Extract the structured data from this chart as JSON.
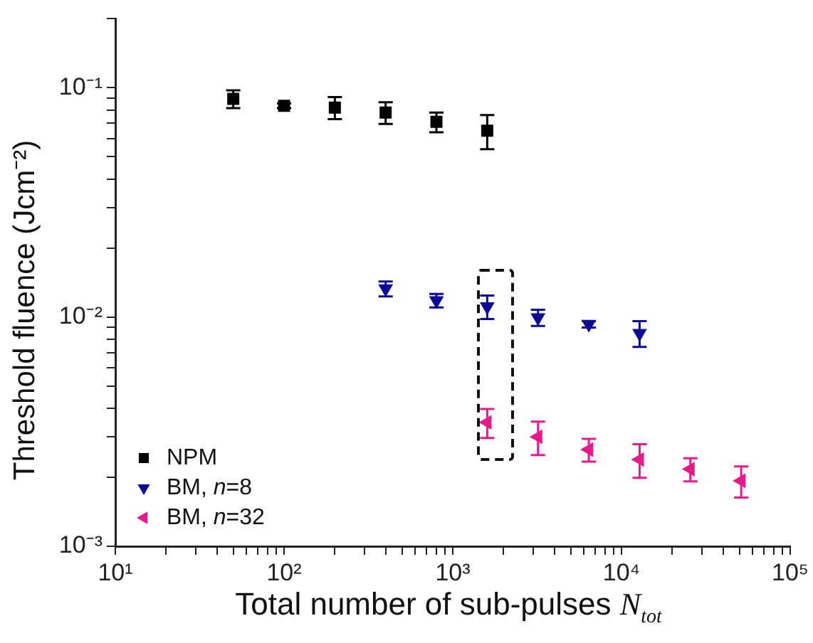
{
  "chart_data": {
    "type": "scatter",
    "xlabel": "Total number of sub-pulses N$_{tot}$",
    "ylabel": "Threshold fluence  (Jcm⁻²)",
    "log": "xy",
    "grid": false,
    "legend": "bottom left",
    "xlim": [
      10,
      100000
    ],
    "xticks": [
      {
        "value": 10,
        "label": "10¹"
      },
      {
        "value": 20,
        "label": null
      },
      {
        "value": 30,
        "label": null
      },
      {
        "value": 40,
        "label": null
      },
      {
        "value": 50,
        "label": null
      },
      {
        "value": 60,
        "label": null
      },
      {
        "value": 70,
        "label": null
      },
      {
        "value": 80,
        "label": null
      },
      {
        "value": 90,
        "label": null
      },
      {
        "value": 100,
        "label": "10²"
      },
      {
        "value": 200,
        "label": null
      },
      {
        "value": 300,
        "label": null
      },
      {
        "value": 400,
        "label": null
      },
      {
        "value": 500,
        "label": null
      },
      {
        "value": 600,
        "label": null
      },
      {
        "value": 700,
        "label": null
      },
      {
        "value": 800,
        "label": null
      },
      {
        "value": 900,
        "label": null
      },
      {
        "value": 1000,
        "label": "10³"
      },
      {
        "value": 2000,
        "label": null
      },
      {
        "value": 3000,
        "label": null
      },
      {
        "value": 4000,
        "label": null
      },
      {
        "value": 5000,
        "label": null
      },
      {
        "value": 6000,
        "label": null
      },
      {
        "value": 7000,
        "label": null
      },
      {
        "value": 8000,
        "label": null
      },
      {
        "value": 9000,
        "label": null
      },
      {
        "value": 10000,
        "label": "10⁴"
      },
      {
        "value": 20000,
        "label": null
      },
      {
        "value": 30000,
        "label": null
      },
      {
        "value": 40000,
        "label": null
      },
      {
        "value": 50000,
        "label": null
      },
      {
        "value": 60000,
        "label": null
      },
      {
        "value": 70000,
        "label": null
      },
      {
        "value": 80000,
        "label": null
      },
      {
        "value": 90000,
        "label": null
      },
      {
        "value": 100000,
        "label": "10⁵"
      }
    ],
    "ylim": [
      0.001,
      0.2
    ],
    "yticks": [
      {
        "value": 0.001,
        "label": "10⁻³"
      },
      {
        "value": 0.002,
        "label": null
      },
      {
        "value": 0.003,
        "label": null
      },
      {
        "value": 0.004,
        "label": null
      },
      {
        "value": 0.005,
        "label": null
      },
      {
        "value": 0.006,
        "label": null
      },
      {
        "value": 0.007,
        "label": null
      },
      {
        "value": 0.008,
        "label": null
      },
      {
        "value": 0.009,
        "label": null
      },
      {
        "value": 0.01,
        "label": "10⁻²"
      },
      {
        "value": 0.02,
        "label": null
      },
      {
        "value": 0.03,
        "label": null
      },
      {
        "value": 0.04,
        "label": null
      },
      {
        "value": 0.05,
        "label": null
      },
      {
        "value": 0.06,
        "label": null
      },
      {
        "value": 0.07,
        "label": null
      },
      {
        "value": 0.08,
        "label": null
      },
      {
        "value": 0.09,
        "label": null
      },
      {
        "value": 0.1,
        "label": "10⁻¹"
      },
      {
        "value": 0.2,
        "label": null
      }
    ],
    "series": [
      {
        "name": "NPM",
        "color": "#000000",
        "marker": "square",
        "x": [
          50,
          100,
          200,
          400,
          800,
          1600
        ],
        "values": [
          0.0895,
          0.0835,
          0.082,
          0.078,
          0.071,
          0.065
        ],
        "errors": [
          0.008,
          0.002,
          0.009,
          0.0085,
          0.007,
          0.011
        ]
      },
      {
        "name": "BM, n=8",
        "color": "#0a0a96",
        "marker": "triangle",
        "x": [
          400,
          800,
          1600,
          3200,
          6400,
          12800
        ],
        "values": [
          0.0133,
          0.0118,
          0.0111,
          0.00995,
          0.0093,
          0.0085
        ],
        "errors": [
          0.001,
          0.0008,
          0.0013,
          0.0008,
          0.0003,
          0.0011
        ]
      },
      {
        "name": "BM, n=32",
        "color": "#e8198c",
        "marker": "triangle",
        "x": [
          1600,
          3200,
          6400,
          12800,
          25600,
          51200
        ],
        "values": [
          0.00347,
          0.003,
          0.00264,
          0.00239,
          0.00217,
          0.00193
        ],
        "errors": [
          0.0005,
          0.0005,
          0.0003,
          0.0004,
          0.00025,
          0.0003
        ]
      }
    ]
  }
}
